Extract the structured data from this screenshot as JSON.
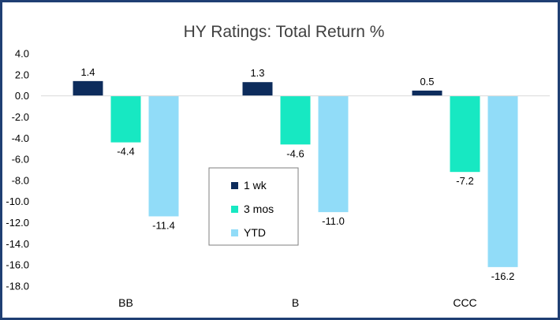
{
  "chart_data": {
    "type": "bar",
    "title": "HY Ratings: Total Return %",
    "xlabel": "",
    "ylabel": "",
    "categories": [
      "BB",
      "B",
      "CCC"
    ],
    "series": [
      {
        "name": "1 wk",
        "color": "#0d2c5c",
        "values": [
          1.4,
          1.3,
          0.5
        ],
        "labels": [
          "1.4",
          "1.3",
          "0.5"
        ]
      },
      {
        "name": "3 mos",
        "color": "#17e8c2",
        "values": [
          -4.4,
          -4.6,
          -7.2
        ],
        "labels": [
          "-4.4",
          "-4.6",
          "-7.2"
        ]
      },
      {
        "name": "YTD",
        "color": "#91dcf8",
        "values": [
          -11.4,
          -11.0,
          -16.2
        ],
        "labels": [
          "-11.4",
          "-11.0",
          "-16.2"
        ]
      }
    ],
    "ylim": [
      -18.0,
      4.0
    ],
    "ytick_labels": [
      "4.0",
      "2.0",
      "0.0",
      "-2.0",
      "-4.0",
      "-6.0",
      "-8.0",
      "-10.0",
      "-12.0",
      "-14.0",
      "-16.0",
      "-18.0"
    ],
    "grid": false,
    "legend_position": "center"
  }
}
